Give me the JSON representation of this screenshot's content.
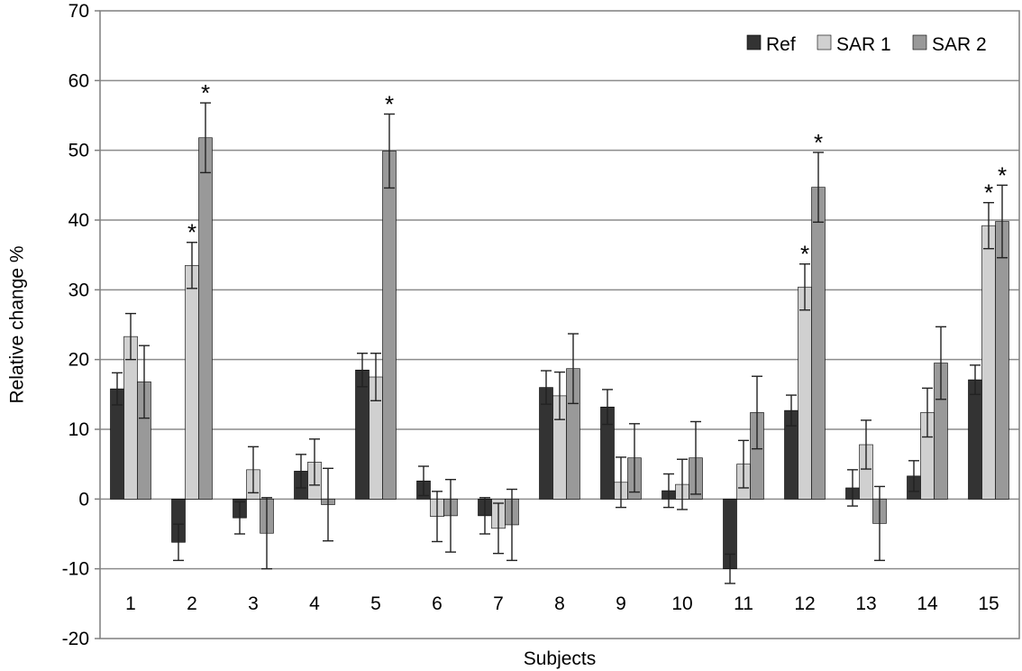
{
  "chart_data": {
    "type": "bar",
    "title": "",
    "xlabel": "Subjects",
    "ylabel": "Relative change %",
    "ylim": [
      -20,
      70
    ],
    "yticks": [
      -20,
      -10,
      0,
      10,
      20,
      30,
      40,
      50,
      60,
      70
    ],
    "grid": true,
    "legend_position": "top-right",
    "categories": [
      "1",
      "2",
      "3",
      "4",
      "5",
      "6",
      "7",
      "8",
      "9",
      "10",
      "11",
      "12",
      "13",
      "14",
      "15"
    ],
    "series": [
      {
        "name": "Ref",
        "color": "#333333",
        "values": [
          15.8,
          -6.2,
          -2.7,
          4.0,
          18.5,
          2.6,
          -2.4,
          16.0,
          13.2,
          1.2,
          -10.0,
          12.7,
          1.6,
          3.3,
          17.1
        ],
        "errors": [
          2.3,
          2.6,
          2.3,
          2.4,
          2.4,
          2.1,
          2.6,
          2.4,
          2.5,
          2.4,
          2.1,
          2.2,
          2.6,
          2.2,
          2.1
        ],
        "significant": [
          false,
          false,
          false,
          false,
          false,
          false,
          false,
          false,
          false,
          false,
          false,
          false,
          false,
          false,
          false
        ]
      },
      {
        "name": "SAR 1",
        "color": "#d0d0d0",
        "values": [
          23.3,
          33.5,
          4.2,
          5.3,
          17.5,
          -2.5,
          -4.2,
          14.8,
          2.4,
          2.1,
          5.0,
          30.4,
          7.8,
          12.4,
          39.2
        ],
        "errors": [
          3.3,
          3.3,
          3.3,
          3.3,
          3.4,
          3.6,
          3.6,
          3.4,
          3.6,
          3.6,
          3.4,
          3.3,
          3.5,
          3.5,
          3.3
        ],
        "significant": [
          false,
          true,
          false,
          false,
          false,
          false,
          false,
          false,
          false,
          false,
          false,
          true,
          false,
          false,
          true
        ]
      },
      {
        "name": "SAR 2",
        "color": "#999999",
        "values": [
          16.8,
          51.8,
          -4.9,
          -0.8,
          49.9,
          -2.4,
          -3.7,
          18.7,
          5.9,
          5.9,
          12.4,
          44.7,
          -3.5,
          19.5,
          39.8
        ],
        "errors": [
          5.2,
          5.0,
          5.1,
          5.2,
          5.3,
          5.2,
          5.1,
          5.0,
          4.9,
          5.2,
          5.2,
          5.0,
          5.3,
          5.2,
          5.2
        ],
        "significant": [
          false,
          true,
          false,
          false,
          true,
          false,
          false,
          false,
          false,
          false,
          false,
          true,
          false,
          false,
          true
        ]
      }
    ],
    "annotation_symbol": "*"
  }
}
